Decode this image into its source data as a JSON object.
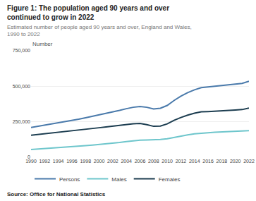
{
  "chart_data": {
    "type": "line",
    "title": "Figure 1: The population aged 90 years and over continued to grow in 2022",
    "subtitle": "Estimated number of people aged 90 years and over, England and Wales, 1990 to 2022",
    "source": "Source: Office for National Statistics",
    "ylabel": "Number",
    "x": [
      1990,
      1991,
      1992,
      1993,
      1994,
      1995,
      1996,
      1997,
      1998,
      1999,
      2000,
      2001,
      2002,
      2003,
      2004,
      2005,
      2006,
      2007,
      2008,
      2009,
      2010,
      2011,
      2012,
      2013,
      2014,
      2015,
      2016,
      2017,
      2018,
      2019,
      2020,
      2021,
      2022
    ],
    "series": [
      {
        "name": "Persons",
        "color": "#4a7aab",
        "values": [
          210000,
          218000,
          226000,
          234000,
          242000,
          250000,
          260000,
          268000,
          278000,
          288000,
          298000,
          308000,
          318000,
          330000,
          342000,
          352000,
          358000,
          352000,
          340000,
          345000,
          365000,
          400000,
          430000,
          455000,
          475000,
          490000,
          495000,
          500000,
          505000,
          510000,
          515000,
          520000,
          535000
        ]
      },
      {
        "name": "Males",
        "color": "#6ec6cc",
        "values": [
          55000,
          58000,
          61000,
          64000,
          67000,
          70000,
          74000,
          78000,
          82000,
          86000,
          90000,
          94000,
          98000,
          104000,
          110000,
          116000,
          120000,
          122000,
          122000,
          125000,
          130000,
          140000,
          150000,
          158000,
          165000,
          170000,
          173000,
          176000,
          178000,
          180000,
          182000,
          184000,
          188000
        ]
      },
      {
        "name": "Females",
        "color": "#1c3d50",
        "values": [
          155000,
          160000,
          165000,
          170000,
          175000,
          180000,
          186000,
          190000,
          196000,
          202000,
          208000,
          214000,
          220000,
          226000,
          232000,
          236000,
          238000,
          230000,
          218000,
          220000,
          235000,
          260000,
          280000,
          297000,
          310000,
          320000,
          322000,
          324000,
          327000,
          330000,
          333000,
          336000,
          347000
        ]
      }
    ],
    "xlim": [
      1990,
      2022
    ],
    "xticks": [
      1990,
      1992,
      1994,
      1996,
      1998,
      2000,
      2002,
      2004,
      2006,
      2008,
      2010,
      2012,
      2014,
      2016,
      2018,
      2020,
      2022
    ],
    "ylim": [
      0,
      750000
    ],
    "yticks": [
      0,
      {
        "value": 250000,
        "label": "250,000"
      },
      {
        "value": 500000,
        "label": "500,000"
      },
      {
        "value": 750000,
        "label": "750,000"
      }
    ],
    "grid": "y",
    "legend": "bottom"
  }
}
